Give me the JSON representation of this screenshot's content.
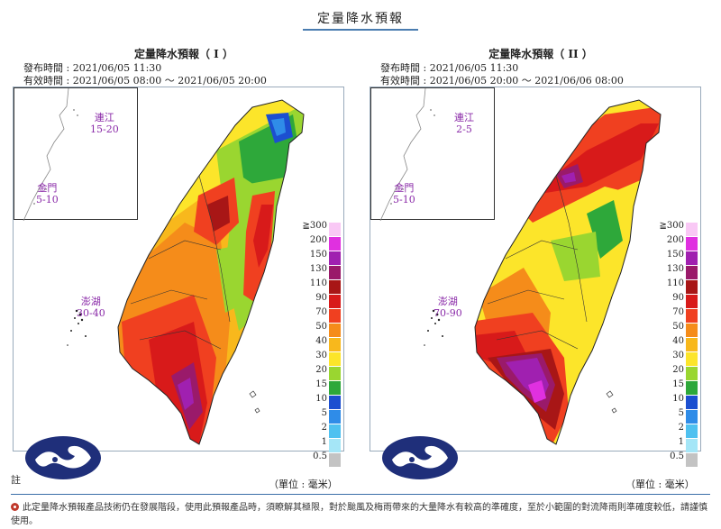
{
  "header": {
    "title": "定量降水預報"
  },
  "panels": [
    {
      "title": "定量降水預報（ I ）",
      "issued": "發布時間 : 2021/06/05 11:30",
      "valid": "有效時間 : 2021/06/05 08:00 ～ 2021/06/05 20:00",
      "matsu": {
        "name": "連江",
        "range": "15-20"
      },
      "kinmen": {
        "name": "金門",
        "range": "5-10"
      },
      "penghu": {
        "name": "澎湖",
        "range": "30-40"
      },
      "unit": "（單位 : 毫米）"
    },
    {
      "title": "定量降水預報（ II ）",
      "issued": "發布時間 : 2021/06/05 11:30",
      "valid": "有效時間 : 2021/06/05 20:00 ～ 2021/06/06 08:00",
      "matsu": {
        "name": "連江",
        "range": "2-5"
      },
      "kinmen": {
        "name": "金門",
        "range": "5-10"
      },
      "penghu": {
        "name": "澎湖",
        "range": "70-90"
      },
      "unit": "（單位 : 毫米）"
    }
  ],
  "legend": [
    {
      "value": "≧300",
      "color": "#f9c8f5"
    },
    {
      "value": "200",
      "color": "#e030e0"
    },
    {
      "value": "150",
      "color": "#a020b0"
    },
    {
      "value": "130",
      "color": "#9a1a6a"
    },
    {
      "value": "110",
      "color": "#a81616"
    },
    {
      "value": "90",
      "color": "#d81a1a"
    },
    {
      "value": "70",
      "color": "#f04020"
    },
    {
      "value": "50",
      "color": "#f58c1a"
    },
    {
      "value": "40",
      "color": "#f8b81c"
    },
    {
      "value": "30",
      "color": "#fce52a"
    },
    {
      "value": "20",
      "color": "#9ad630"
    },
    {
      "value": "15",
      "color": "#2ea83a"
    },
    {
      "value": "10",
      "color": "#1c4fd0"
    },
    {
      "value": "5",
      "color": "#2f8ce8"
    },
    {
      "value": "2",
      "color": "#4fc1f0"
    },
    {
      "value": "1",
      "color": "#a5e6f7"
    },
    {
      "value": "0.5",
      "color": "#c3c3c3"
    }
  ],
  "notes": {
    "label": "註",
    "text": "此定量降水預報產品技術仍在發展階段，使用此預報產品時，須瞭解其極限，對於颱風及梅雨帶來的大量降水有較高的準確度，至於小範圍的對流降雨則準確度較低，請謹慎使用。"
  }
}
